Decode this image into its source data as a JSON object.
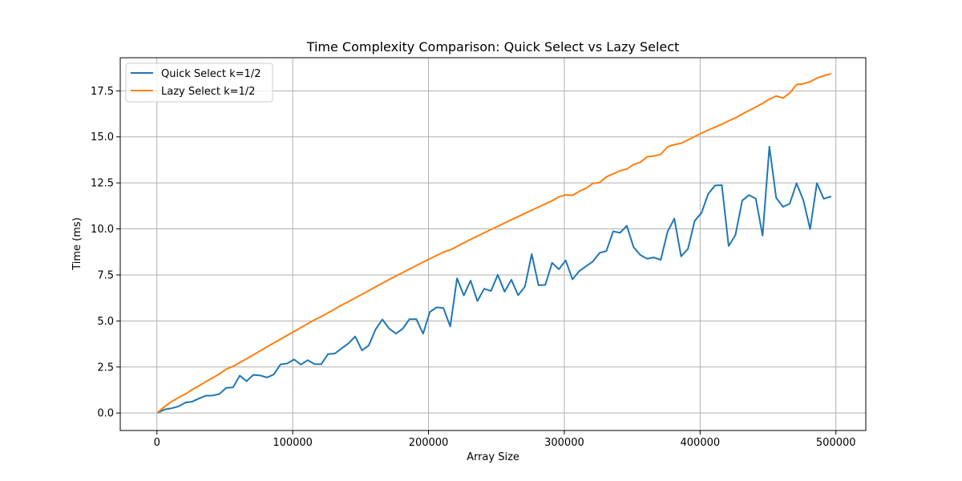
{
  "chart_data": {
    "type": "line",
    "title": "Time Complexity Comparison: Quick Select vs Lazy Select",
    "xlabel": "Array Size",
    "ylabel": "Time (ms)",
    "xlim": [
      -27000,
      522000
    ],
    "ylim": [
      -0.95,
      19.3
    ],
    "xticks": [
      0,
      100000,
      200000,
      300000,
      400000,
      500000
    ],
    "xtick_labels": [
      "0",
      "100000",
      "200000",
      "300000",
      "400000",
      "500000"
    ],
    "yticks": [
      0,
      2.5,
      5,
      7.5,
      10,
      12.5,
      15,
      17.5
    ],
    "ytick_labels": [
      "0.0",
      "2.5",
      "5.0",
      "7.5",
      "10.0",
      "12.5",
      "15.0",
      "17.5"
    ],
    "grid": true,
    "legend_position": "top-left",
    "x": [
      1000,
      6000,
      11000,
      16000,
      21000,
      26000,
      31000,
      36000,
      41000,
      46000,
      51000,
      56000,
      61000,
      66000,
      71000,
      76000,
      81000,
      86000,
      91000,
      96000,
      101000,
      106000,
      111000,
      116000,
      121000,
      126000,
      131000,
      136000,
      141000,
      146000,
      151000,
      156000,
      161000,
      166000,
      171000,
      176000,
      181000,
      186000,
      191000,
      196000,
      201000,
      206000,
      211000,
      216000,
      221000,
      226000,
      231000,
      236000,
      241000,
      246000,
      251000,
      256000,
      261000,
      266000,
      271000,
      276000,
      281000,
      286000,
      291000,
      296000,
      301000,
      306000,
      311000,
      316000,
      321000,
      326000,
      331000,
      336000,
      341000,
      346000,
      351000,
      356000,
      361000,
      366000,
      371000,
      376000,
      381000,
      386000,
      391000,
      396000,
      401000,
      406000,
      411000,
      416000,
      421000,
      426000,
      431000,
      436000,
      441000,
      446000,
      451000,
      456000,
      461000,
      466000,
      471000,
      476000,
      481000,
      486000,
      491000,
      496000
    ],
    "series": [
      {
        "name": "Quick Select k=1/2",
        "color": "#1f77b4",
        "values": [
          0.03,
          0.2,
          0.26,
          0.36,
          0.57,
          0.62,
          0.79,
          0.94,
          0.95,
          1.03,
          1.37,
          1.39,
          2.03,
          1.73,
          2.07,
          2.04,
          1.93,
          2.09,
          2.64,
          2.69,
          2.91,
          2.63,
          2.87,
          2.66,
          2.65,
          3.2,
          3.23,
          3.51,
          3.78,
          4.16,
          3.4,
          3.67,
          4.54,
          5.08,
          4.59,
          4.31,
          4.58,
          5.1,
          5.1,
          4.31,
          5.49,
          5.74,
          5.7,
          4.7,
          7.32,
          6.39,
          7.19,
          6.08,
          6.75,
          6.63,
          7.51,
          6.59,
          7.24,
          6.4,
          6.87,
          8.63,
          6.94,
          6.96,
          8.16,
          7.81,
          8.29,
          7.26,
          7.71,
          7.97,
          8.23,
          8.7,
          8.8,
          9.87,
          9.79,
          10.17,
          9.01,
          8.58,
          8.38,
          8.45,
          8.32,
          9.84,
          10.56,
          8.51,
          8.91,
          10.44,
          10.87,
          11.91,
          12.36,
          12.38,
          9.07,
          9.67,
          11.54,
          11.84,
          11.64,
          9.64,
          14.47,
          11.69,
          11.2,
          11.37,
          12.48,
          11.56,
          9.99,
          12.49,
          11.64,
          11.75
        ]
      },
      {
        "name": "Lazy Select k=1/2",
        "color": "#ff7f0e",
        "values": [
          0.06,
          0.37,
          0.63,
          0.84,
          1.03,
          1.27,
          1.48,
          1.7,
          1.91,
          2.12,
          2.38,
          2.53,
          2.74,
          2.94,
          3.16,
          3.37,
          3.59,
          3.8,
          4.01,
          4.22,
          4.43,
          4.64,
          4.85,
          5.06,
          5.24,
          5.44,
          5.65,
          5.86,
          6.05,
          6.25,
          6.45,
          6.65,
          6.85,
          7.05,
          7.25,
          7.44,
          7.63,
          7.82,
          8.01,
          8.2,
          8.38,
          8.56,
          8.74,
          8.86,
          9.05,
          9.24,
          9.43,
          9.61,
          9.79,
          9.97,
          10.14,
          10.32,
          10.5,
          10.67,
          10.85,
          11.02,
          11.19,
          11.36,
          11.53,
          11.74,
          11.85,
          11.82,
          12.04,
          12.21,
          12.47,
          12.52,
          12.83,
          12.99,
          13.16,
          13.25,
          13.5,
          13.62,
          13.92,
          13.96,
          14.05,
          14.46,
          14.58,
          14.65,
          14.83,
          15.02,
          15.2,
          15.37,
          15.53,
          15.69,
          15.87,
          16.03,
          16.24,
          16.43,
          16.62,
          16.82,
          17.05,
          17.22,
          17.11,
          17.38,
          17.84,
          17.88,
          18.0,
          18.19,
          18.32,
          18.42
        ]
      }
    ]
  }
}
